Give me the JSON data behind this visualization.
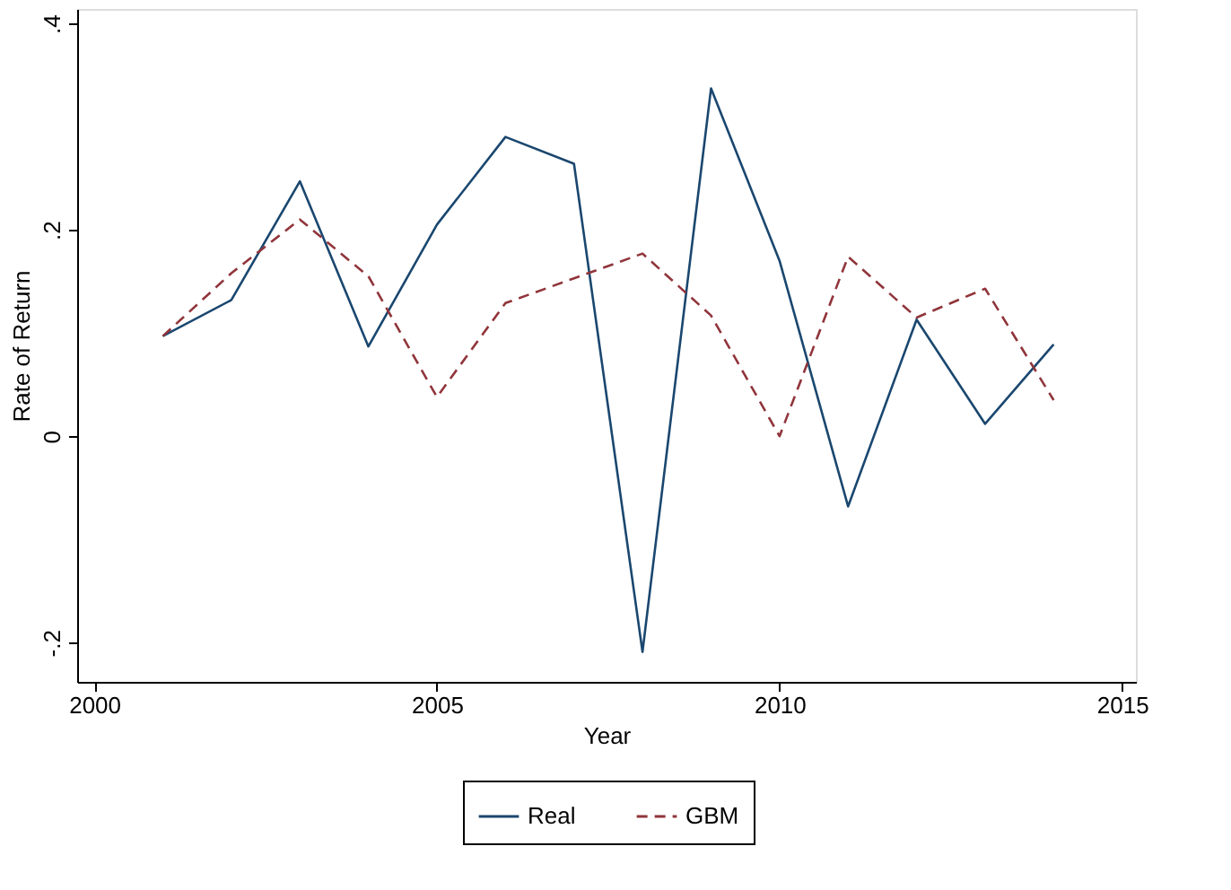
{
  "chart_data": {
    "type": "line",
    "xlabel": "Year",
    "ylabel": "Rate of Return",
    "x": [
      2001,
      2002,
      2003,
      2004,
      2005,
      2006,
      2007,
      2008,
      2009,
      2010,
      2011,
      2012,
      2013,
      2014
    ],
    "series": [
      {
        "name": "Real",
        "color": "#1a476f",
        "line_style": "solid",
        "values": [
          0.097,
          0.132,
          0.247,
          0.087,
          0.205,
          0.29,
          0.264,
          -0.209,
          0.337,
          0.17,
          -0.068,
          0.113,
          0.012,
          0.089
        ]
      },
      {
        "name": "GBM",
        "color": "#90353b",
        "line_style": "dashed",
        "values": [
          0.097,
          0.158,
          0.21,
          0.155,
          0.038,
          0.129,
          0.153,
          0.177,
          0.117,
          0.0,
          0.174,
          0.115,
          0.143,
          0.035
        ]
      }
    ],
    "xlim": [
      1999.75,
      2015.2
    ],
    "xticks": [
      2000,
      2005,
      2010,
      2015
    ],
    "ylim": [
      -0.238,
      0.414
    ],
    "yticks": [
      {
        "value": -0.2,
        "label": "-.2"
      },
      {
        "value": 0,
        "label": "0"
      },
      {
        "value": 0.2,
        "label": ".2"
      },
      {
        "value": 0.4,
        "label": ".4"
      }
    ],
    "grid": false,
    "legend": "bottom",
    "marker": "none"
  }
}
